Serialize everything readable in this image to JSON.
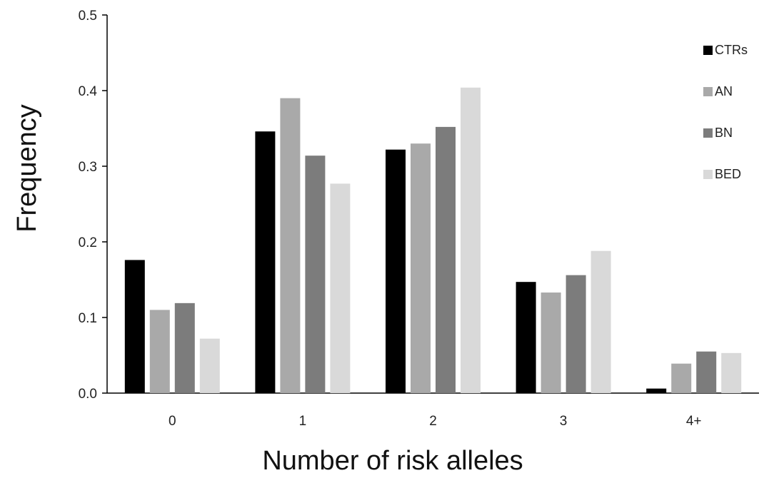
{
  "chart_data": {
    "type": "bar",
    "xlabel": "Number of risk alleles",
    "ylabel": "Frequency",
    "categories": [
      "0",
      "1",
      "2",
      "3",
      "4+"
    ],
    "ylim": [
      0,
      0.5
    ],
    "yticks": [
      "0.0",
      "0.1",
      "0.2",
      "0.3",
      "0.4",
      "0.5"
    ],
    "ytick_values": [
      0,
      0.1,
      0.2,
      0.3,
      0.4,
      0.5
    ],
    "grid": false,
    "legend_position": "right",
    "series": [
      {
        "name": "CTRs",
        "color": "#000000",
        "values": [
          0.176,
          0.346,
          0.322,
          0.147,
          0.006
        ]
      },
      {
        "name": "AN",
        "color": "#a9a9a9",
        "values": [
          0.11,
          0.39,
          0.33,
          0.133,
          0.039
        ]
      },
      {
        "name": "BN",
        "color": "#7c7c7c",
        "values": [
          0.119,
          0.314,
          0.352,
          0.156,
          0.055
        ]
      },
      {
        "name": "BED",
        "color": "#d9d9d9",
        "values": [
          0.072,
          0.277,
          0.404,
          0.188,
          0.053
        ]
      }
    ]
  }
}
